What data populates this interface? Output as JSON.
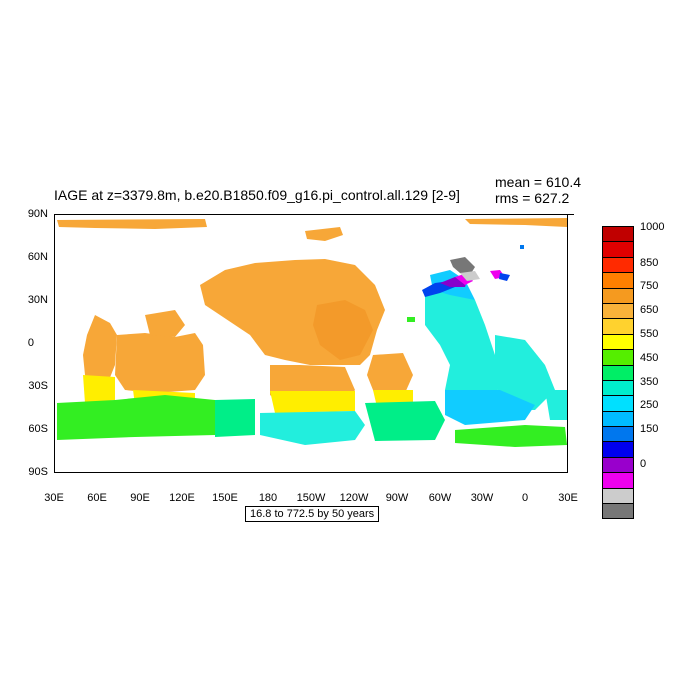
{
  "title": "IAGE at z=3379.8m, b.e20.B1850.f09_g16.pi_control.all.129 [2-9]",
  "mean_text": "mean = 610.4",
  "rms_text": "rms = 627.2",
  "info_box": "16.8 to 772.5 by 50 years",
  "y_axis_labels": [
    "90N",
    "60N",
    "30N",
    "0",
    "30S",
    "60S",
    "90S"
  ],
  "x_axis_labels": [
    "30E",
    "60E",
    "90E",
    "120E",
    "150E",
    "180",
    "150W",
    "120W",
    "90W",
    "60W",
    "30W",
    "0",
    "30E"
  ],
  "colorbar": {
    "colors": [
      "#c00000",
      "#e00000",
      "#ff2a00",
      "#ff7f00",
      "#f59a1f",
      "#f9b23a",
      "#ffd22e",
      "#ffff00",
      "#55ee00",
      "#00ee66",
      "#00eecc",
      "#00e0ff",
      "#00bbff",
      "#0077ee",
      "#0000ee",
      "#9900cc",
      "#ee00ee",
      "#cccccc",
      "#777777"
    ],
    "labels": [
      "1000",
      "850",
      "750",
      "650",
      "550",
      "450",
      "350",
      "250",
      "150",
      "0"
    ]
  },
  "map_colors": {
    "pacific": "#f7a738",
    "pacific_dark": "#f39a2a",
    "yellow": "#ffee00",
    "green": "#33ee22",
    "mint": "#00ee88",
    "cyan": "#22eedd",
    "lightblue": "#11ccff",
    "blue": "#0044ee",
    "purple": "#8800cc",
    "magenta": "#ee00ee",
    "gray": "#777777",
    "lightgray": "#cccccc"
  }
}
